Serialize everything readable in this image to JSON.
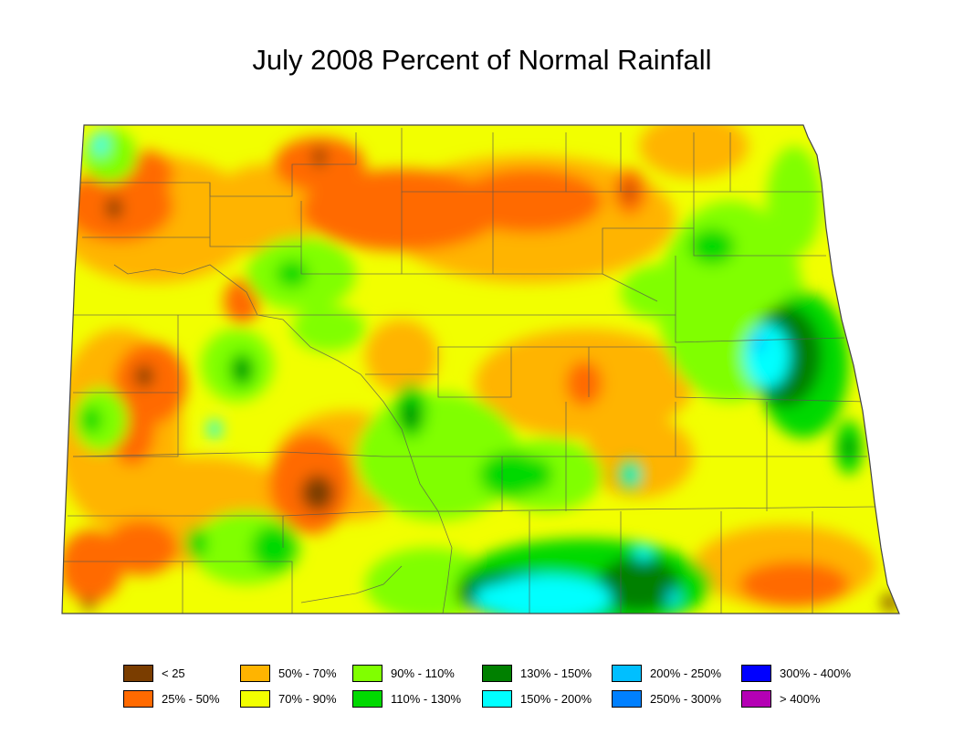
{
  "title": "July 2008 Percent of Normal Rainfall",
  "legend": [
    {
      "label": "< 25",
      "color": "#7a3d00"
    },
    {
      "label": "25% - 50%",
      "color": "#ff6a00"
    },
    {
      "label": "50% - 70%",
      "color": "#ffb400"
    },
    {
      "label": "70% - 90%",
      "color": "#f2ff00"
    },
    {
      "label": "90% - 110%",
      "color": "#80ff00"
    },
    {
      "label": "110% - 130%",
      "color": "#00d900"
    },
    {
      "label": "130% - 150%",
      "color": "#008000"
    },
    {
      "label": "150% - 200%",
      "color": "#00ffff"
    },
    {
      "label": "200% - 250%",
      "color": "#00bfff"
    },
    {
      "label": "250% - 300%",
      "color": "#0080ff"
    },
    {
      "label": "300% - 400%",
      "color": "#0000ff"
    },
    {
      "label": "> 400%",
      "color": "#b400b4"
    }
  ]
}
